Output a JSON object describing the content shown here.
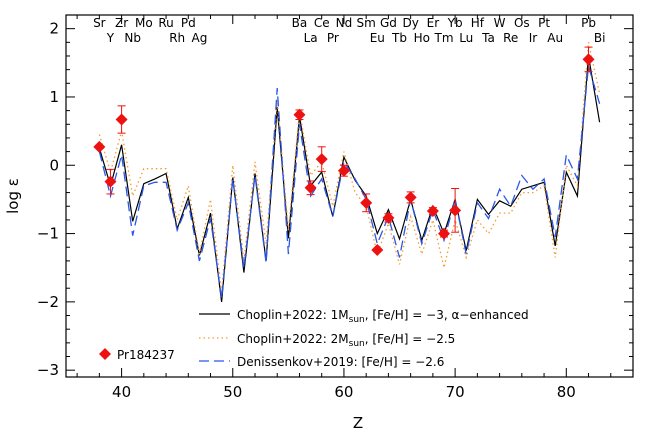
{
  "chart_data": {
    "type": "line",
    "xlabel": "Z",
    "ylabel": "log ε",
    "xlim": [
      35,
      86
    ],
    "ylim": [
      -3.1,
      2.2
    ],
    "x_ticks": [
      40,
      50,
      60,
      70,
      80
    ],
    "y_ticks": [
      -3,
      -2,
      -1,
      0,
      1,
      2
    ],
    "grid": false,
    "legend_position": "bottom-center",
    "element_labels": [
      {
        "z": 38,
        "label": "Sr",
        "row": "top"
      },
      {
        "z": 39,
        "label": "Y",
        "row": "bottom"
      },
      {
        "z": 40,
        "label": "Zr",
        "row": "top"
      },
      {
        "z": 41,
        "label": "Nb",
        "row": "bottom"
      },
      {
        "z": 42,
        "label": "Mo",
        "row": "top"
      },
      {
        "z": 44,
        "label": "Ru",
        "row": "top"
      },
      {
        "z": 45,
        "label": "Rh",
        "row": "bottom"
      },
      {
        "z": 46,
        "label": "Pd",
        "row": "top"
      },
      {
        "z": 47,
        "label": "Ag",
        "row": "bottom"
      },
      {
        "z": 56,
        "label": "Ba",
        "row": "top"
      },
      {
        "z": 57,
        "label": "La",
        "row": "bottom"
      },
      {
        "z": 58,
        "label": "Ce",
        "row": "top"
      },
      {
        "z": 59,
        "label": "Pr",
        "row": "bottom"
      },
      {
        "z": 60,
        "label": "Nd",
        "row": "top"
      },
      {
        "z": 62,
        "label": "Sm",
        "row": "top"
      },
      {
        "z": 63,
        "label": "Eu",
        "row": "bottom"
      },
      {
        "z": 64,
        "label": "Gd",
        "row": "top"
      },
      {
        "z": 65,
        "label": "Tb",
        "row": "bottom"
      },
      {
        "z": 66,
        "label": "Dy",
        "row": "top"
      },
      {
        "z": 67,
        "label": "Ho",
        "row": "bottom"
      },
      {
        "z": 68,
        "label": "Er",
        "row": "top"
      },
      {
        "z": 69,
        "label": "Tm",
        "row": "bottom"
      },
      {
        "z": 70,
        "label": "Yb",
        "row": "top"
      },
      {
        "z": 71,
        "label": "Lu",
        "row": "bottom"
      },
      {
        "z": 72,
        "label": "Hf",
        "row": "top"
      },
      {
        "z": 73,
        "label": "Ta",
        "row": "bottom"
      },
      {
        "z": 74,
        "label": "W",
        "row": "top"
      },
      {
        "z": 75,
        "label": "Re",
        "row": "bottom"
      },
      {
        "z": 76,
        "label": "Os",
        "row": "top"
      },
      {
        "z": 77,
        "label": "Ir",
        "row": "bottom"
      },
      {
        "z": 78,
        "label": "Pt",
        "row": "top"
      },
      {
        "z": 79,
        "label": "Au",
        "row": "bottom"
      },
      {
        "z": 82,
        "label": "Pb",
        "row": "top"
      },
      {
        "z": 83,
        "label": "Bi",
        "row": "bottom"
      }
    ],
    "series": [
      {
        "name": "Choplin+2022: 1M",
        "legend_sub": "sun",
        "legend_tail": ", [Fe/H] = −3, α−enhanced",
        "color": "#000000",
        "style": "solid",
        "x": [
          38,
          39,
          40,
          41,
          42,
          43,
          44,
          45,
          46,
          47,
          48,
          49,
          50,
          51,
          52,
          53,
          54,
          55,
          56,
          57,
          58,
          59,
          60,
          61,
          62,
          63,
          64,
          65,
          66,
          67,
          68,
          69,
          70,
          71,
          72,
          73,
          74,
          75,
          76,
          77,
          78,
          79,
          80,
          81,
          82,
          83
        ],
        "y": [
          0.25,
          -0.3,
          0.3,
          -0.82,
          -0.27,
          -0.2,
          -0.12,
          -0.93,
          -0.47,
          -1.32,
          -0.7,
          -2.0,
          -0.18,
          -1.57,
          -0.12,
          -1.4,
          0.85,
          -1.07,
          0.72,
          -0.3,
          -0.1,
          -0.75,
          0.12,
          -0.22,
          -0.45,
          -1.0,
          -0.65,
          -1.08,
          -0.5,
          -1.1,
          -0.6,
          -1.0,
          -0.5,
          -1.25,
          -0.5,
          -0.72,
          -0.52,
          -0.6,
          -0.35,
          -0.3,
          -0.25,
          -1.18,
          -0.1,
          -0.45,
          1.6,
          0.63
        ]
      },
      {
        "name": "Choplin+2022: 2M",
        "legend_sub": "sun",
        "legend_tail": ", [Fe/H] = −2.5",
        "color": "#f59b30",
        "style": "dotted",
        "x": [
          38,
          39,
          40,
          41,
          42,
          43,
          44,
          45,
          46,
          47,
          48,
          49,
          50,
          51,
          52,
          53,
          54,
          55,
          56,
          57,
          58,
          59,
          60,
          61,
          62,
          63,
          64,
          65,
          66,
          67,
          68,
          69,
          70,
          71,
          72,
          73,
          74,
          75,
          76,
          77,
          78,
          79,
          80,
          81,
          82,
          83
        ],
        "y": [
          0.45,
          -0.1,
          0.5,
          -0.45,
          -0.05,
          -0.05,
          -0.05,
          -0.8,
          -0.3,
          -1.3,
          -0.5,
          -1.85,
          0.0,
          -1.4,
          0.05,
          -1.15,
          0.95,
          -0.95,
          0.8,
          -0.15,
          0.05,
          -0.6,
          0.2,
          -0.4,
          -0.6,
          -1.3,
          -0.85,
          -1.45,
          -0.75,
          -1.3,
          -0.8,
          -1.5,
          -0.8,
          -1.35,
          -0.8,
          -1.0,
          -0.7,
          -0.7,
          -0.4,
          -0.4,
          -0.3,
          -1.35,
          0.0,
          -0.3,
          1.8,
          1.05
        ]
      },
      {
        "name": "Denissenkov+2019: [Fe/H] = −2.6",
        "color": "#2a57e8",
        "style": "dashed",
        "x": [
          38,
          39,
          40,
          41,
          42,
          43,
          44,
          45,
          46,
          47,
          48,
          49,
          50,
          51,
          52,
          53,
          54,
          55,
          56,
          57,
          58,
          59,
          60,
          61,
          62,
          63,
          64,
          65,
          66,
          67,
          68,
          69,
          70,
          71,
          72,
          73,
          74,
          75,
          76,
          77,
          78,
          79,
          80,
          81,
          82,
          83
        ],
        "y": [
          0.2,
          -0.45,
          0.15,
          -1.03,
          -0.3,
          -0.25,
          -0.25,
          -0.95,
          -0.55,
          -1.4,
          -0.78,
          -1.95,
          -0.2,
          -1.5,
          -0.15,
          -1.43,
          1.13,
          -1.3,
          0.6,
          -0.45,
          -0.2,
          -0.75,
          0.05,
          -0.2,
          -0.5,
          -1.15,
          -0.75,
          -1.35,
          -0.5,
          -1.15,
          -0.65,
          -1.1,
          -0.5,
          -1.3,
          -0.55,
          -0.78,
          -0.35,
          -0.6,
          -0.15,
          -0.35,
          -0.2,
          -1.05,
          0.15,
          -0.2,
          1.45,
          0.9
        ]
      }
    ],
    "observed": {
      "name": "Pr184237",
      "color": "#ee1111",
      "points": [
        {
          "x": 38,
          "y": 0.27,
          "err": 0.0
        },
        {
          "x": 39,
          "y": -0.24,
          "err": 0.18
        },
        {
          "x": 40,
          "y": 0.67,
          "err": 0.2
        },
        {
          "x": 56,
          "y": 0.74,
          "err": 0.07
        },
        {
          "x": 57,
          "y": -0.33,
          "err": 0.1
        },
        {
          "x": 58,
          "y": 0.09,
          "err": 0.18
        },
        {
          "x": 60,
          "y": -0.08,
          "err": 0.08
        },
        {
          "x": 62,
          "y": -0.55,
          "err": 0.13
        },
        {
          "x": 63,
          "y": -1.24,
          "err": 0.0
        },
        {
          "x": 64,
          "y": -0.77,
          "err": 0.06
        },
        {
          "x": 66,
          "y": -0.47,
          "err": 0.08
        },
        {
          "x": 68,
          "y": -0.67,
          "err": 0.05
        },
        {
          "x": 69,
          "y": -1.0,
          "err": 0.05
        },
        {
          "x": 70,
          "y": -0.66,
          "err": 0.32
        },
        {
          "x": 82,
          "y": 1.55,
          "err": 0.18
        }
      ]
    }
  }
}
